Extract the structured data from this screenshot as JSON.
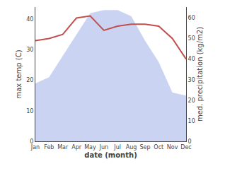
{
  "chart_data": {
    "type": "area",
    "categories": [
      "Jan",
      "Feb",
      "Mar",
      "Apr",
      "May",
      "Jun",
      "Jul",
      "Aug",
      "Sep",
      "Oct",
      "Nov",
      "Dec"
    ],
    "series": [
      {
        "type": "area",
        "color": "#b8c4ee",
        "axis": "y",
        "values": [
          19,
          21,
          28,
          35,
          42,
          43,
          43,
          41,
          33,
          26,
          16,
          15
        ]
      },
      {
        "type": "line",
        "color": "#c0504d",
        "axis": "y2",
        "values": [
          49,
          50,
          52,
          60,
          61,
          54,
          56,
          57,
          57,
          56,
          50,
          40
        ]
      }
    ],
    "xlabel": "date (month)",
    "ylabel": "max temp (C)",
    "y2label": "med. precipitation (kg/m2)",
    "ylim": [
      0,
      44
    ],
    "yticks": [
      0,
      10,
      20,
      30,
      40
    ],
    "y2lim": [
      0,
      65.3
    ],
    "y2ticks": [
      0,
      10,
      20,
      30,
      40,
      50,
      60
    ],
    "grid": false
  }
}
